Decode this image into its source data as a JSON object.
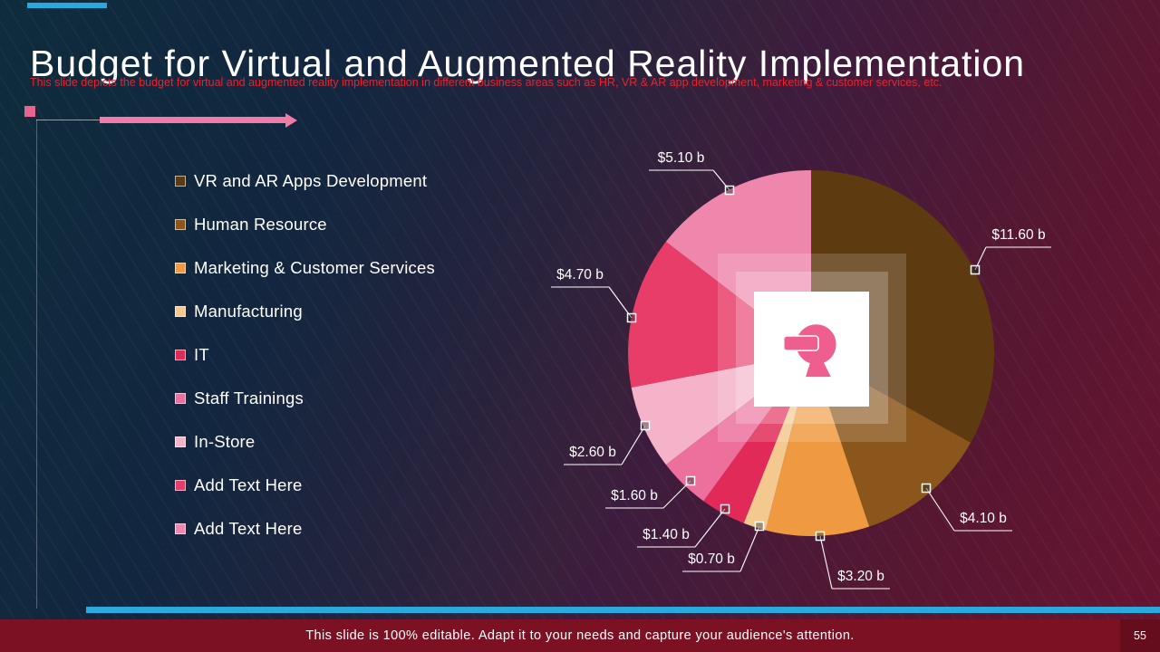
{
  "slide": {
    "title": "Budget for Virtual and Augmented Reality Implementation",
    "subtitle": "This slide depicts the budget for virtual and augmented reality implementation in different business areas such as HR, VR & AR app development, marketing & customer services, etc.",
    "footer": "This slide is 100% editable. Adapt it to your needs and capture your audience's attention.",
    "page_number": "55"
  },
  "colors": {
    "accent_cyan": "#2aa9dd",
    "accent_pink": "#ee7ca6",
    "deco_square_pink": "#e8638f",
    "subtitle_red": "#e9232d",
    "footer_bg": "#7d1124",
    "center_icon_pink": "#ee5f90"
  },
  "chart_data": {
    "type": "pie",
    "categories": [
      "VR and AR Apps Development",
      "Human Resource",
      "Marketing & Customer Services",
      "Manufacturing",
      "IT",
      "Staff Trainings",
      "In-Store",
      "Add Text Here",
      "Add Text Here"
    ],
    "values": [
      11.6,
      4.1,
      3.2,
      0.7,
      1.4,
      1.6,
      2.6,
      4.7,
      5.1
    ],
    "labels": [
      "$11.60 b",
      "$4.10 b",
      "$3.20 b",
      "$0.70 b",
      "$1.40 b",
      "$1.60 b",
      "$2.60 b",
      "$4.70 b",
      "$5.10 b"
    ],
    "colors": [
      "#5e3a10",
      "#8a561b",
      "#ef9a40",
      "#f3c990",
      "#e22a58",
      "#ec6f9c",
      "#f4b3c9",
      "#e83d68",
      "#ef87ac"
    ],
    "start_angle_deg": 0,
    "direction": "clockwise",
    "legend_position": "left",
    "center_icon": "vr-headset-head-icon"
  }
}
